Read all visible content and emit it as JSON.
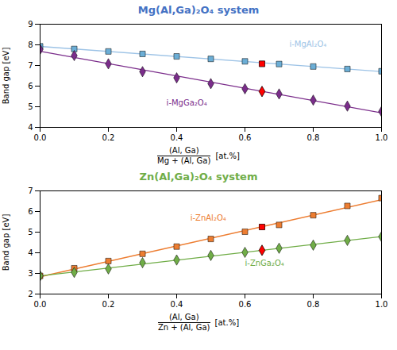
{
  "chart_data": [
    {
      "type": "scatter",
      "title": "Mg(Al,Ga)₂O₄ system",
      "color": "#4472C4",
      "ylabel": "Band gap [eV]",
      "xlabel": {
        "numerator": "(Al, Ga)",
        "denominator": "Mg + (Al, Ga)",
        "unit": "[at.%]"
      },
      "xlim": [
        0,
        1.0
      ],
      "ylim": [
        4,
        9
      ],
      "xticks": [
        {
          "value": 0,
          "label": "0.0"
        },
        0.2,
        0.4,
        0.6,
        0.8,
        {
          "value": 1.0,
          "label": "1.0"
        }
      ],
      "yticks": [
        4,
        5,
        6,
        7,
        8,
        9
      ],
      "grid": false,
      "series": [
        {
          "name": "i-MgAl₂O₄",
          "color": "#6BAED6",
          "marker": "square",
          "x": [
            0,
            0.1,
            0.2,
            0.3,
            0.4,
            0.5,
            0.6,
            0.65,
            0.7,
            0.8,
            0.9,
            1.0
          ],
          "values": [
            7.93,
            7.8,
            7.68,
            7.56,
            7.44,
            7.32,
            7.2,
            7.08,
            7.07,
            6.95,
            6.83,
            6.72
          ],
          "highlight": {
            "x": [
              0.65
            ],
            "values": [
              7.08
            ],
            "color": "red"
          },
          "fit": {
            "x": [
              0,
              1.0
            ],
            "values": [
              7.9234,
              6.7038
            ],
            "color": "#9DC3E6"
          },
          "label": {
            "x": 0.73,
            "y": 7.92,
            "color": "#9DC3E6"
          }
        },
        {
          "name": "i-MgGa₂O₄",
          "color": "#7B2D8B",
          "marker": "diamond",
          "x": [
            0,
            0.1,
            0.2,
            0.3,
            0.4,
            0.5,
            0.6,
            0.65,
            0.7,
            0.8,
            0.9,
            1.0
          ],
          "values": [
            7.78,
            7.48,
            7.08,
            6.7,
            6.4,
            6.12,
            5.87,
            5.74,
            5.62,
            5.32,
            5.03,
            4.77
          ],
          "highlight": {
            "x": [
              0.65
            ],
            "values": [
              5.74
            ],
            "color": "red"
          },
          "fit": {
            "x": [
              0,
              1.0
            ],
            "values": [
              7.6889,
              4.7041
            ],
            "color": "#7B2D8B"
          },
          "label": {
            "x": 0.37,
            "y": 5.05,
            "color": "#7B2D8B"
          }
        }
      ]
    },
    {
      "type": "scatter",
      "title": "Zn(Al,Ga)₂O₄ system",
      "color": "#70AD47",
      "ylabel": "Band gap [eV]",
      "xlabel": {
        "numerator": "(Al, Ga)",
        "denominator": "Zn + (Al, Ga)",
        "unit": "[at.%]"
      },
      "xlim": [
        0,
        1.0
      ],
      "ylim": [
        2,
        7
      ],
      "xticks": [
        {
          "value": 0,
          "label": "0.0"
        },
        0.2,
        0.4,
        0.6,
        0.8,
        {
          "value": 1.0,
          "label": "1.0"
        }
      ],
      "yticks": [
        2,
        3,
        4,
        5,
        6,
        7
      ],
      "grid": false,
      "series": [
        {
          "name": "i-ZnAl₂O₄",
          "color": "#ED7D31",
          "marker": "square",
          "x": [
            0,
            0.1,
            0.2,
            0.3,
            0.4,
            0.5,
            0.6,
            0.65,
            0.7,
            0.8,
            0.9,
            1.0
          ],
          "values": [
            2.88,
            3.25,
            3.6,
            3.95,
            4.3,
            4.67,
            5.02,
            5.25,
            5.35,
            5.82,
            6.27,
            6.65
          ],
          "highlight": {
            "x": [
              0.65
            ],
            "values": [
              5.25
            ],
            "color": "red"
          },
          "fit": {
            "x": [
              0,
              1.0
            ],
            "values": [
              2.8365,
              6.5718
            ],
            "color": "#ED7D31"
          },
          "label": {
            "x": 0.44,
            "y": 5.55,
            "color": "#ED7D31"
          }
        },
        {
          "name": "i-ZnGa₂O₄",
          "color": "#70AD47",
          "marker": "diamond",
          "x": [
            0,
            0.1,
            0.2,
            0.3,
            0.4,
            0.5,
            0.6,
            0.65,
            0.7,
            0.8,
            0.9,
            1.0
          ],
          "values": [
            2.88,
            3.05,
            3.22,
            3.52,
            3.65,
            3.87,
            4.02,
            4.12,
            4.22,
            4.37,
            4.6,
            4.78
          ],
          "highlight": {
            "x": [
              0.65
            ],
            "values": [
              4.12
            ],
            "color": "red"
          },
          "fit": {
            "x": [
              0,
              1.0
            ],
            "values": [
              2.8836,
              4.7855
            ],
            "color": "#70AD47"
          },
          "label": {
            "x": 0.6,
            "y": 3.38,
            "color": "#70AD47"
          }
        }
      ]
    }
  ]
}
